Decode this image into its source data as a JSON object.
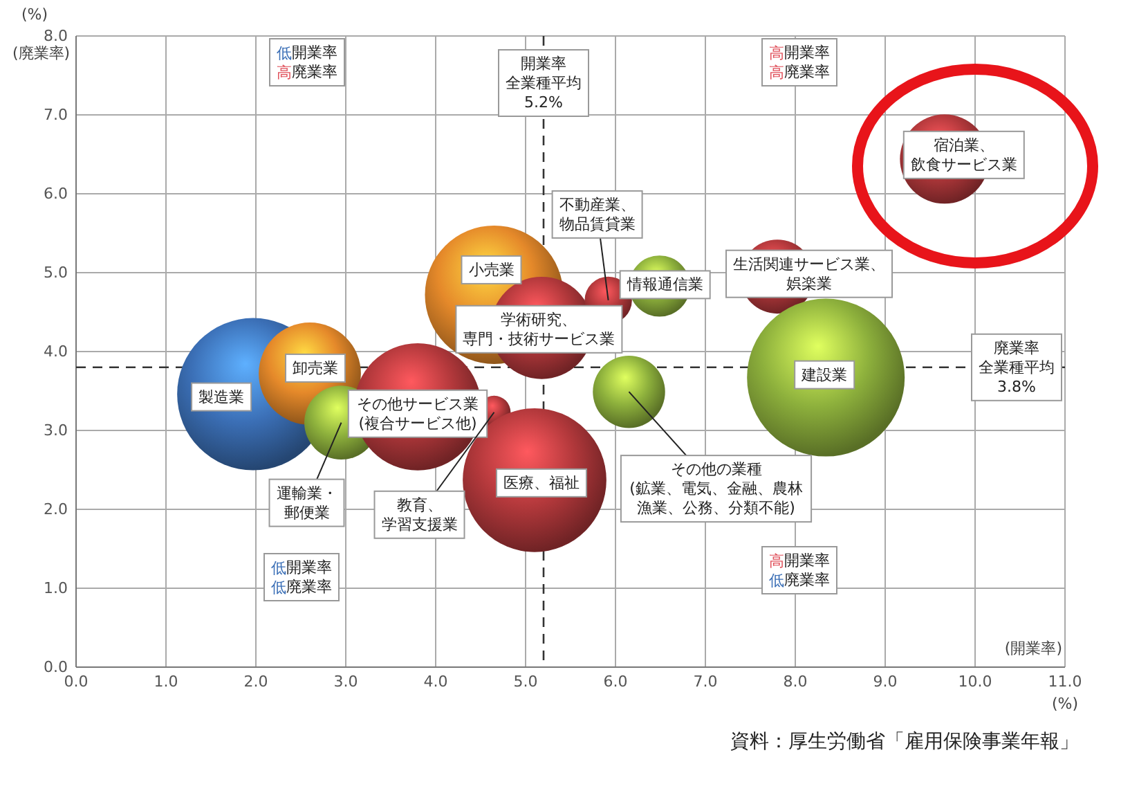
{
  "chart_data": {
    "type": "bubble",
    "xlabel": "(開業率)",
    "ylabel": "(廃業率)",
    "xlim": [
      0,
      11
    ],
    "xticks": [
      {
        "value": 0,
        "label": "0.0"
      },
      {
        "value": 1,
        "label": "1.0"
      },
      {
        "value": 2,
        "label": "2.0"
      },
      {
        "value": 3,
        "label": "3.0"
      },
      {
        "value": 4,
        "label": "4.0"
      },
      {
        "value": 5,
        "label": "5.0"
      },
      {
        "value": 6,
        "label": "6.0"
      },
      {
        "value": 7,
        "label": "7.0"
      },
      {
        "value": 8,
        "label": "8.0"
      },
      {
        "value": 9,
        "label": "9.0"
      },
      {
        "value": 10,
        "label": "10.0"
      },
      {
        "value": 11,
        "label": "11.0"
      }
    ],
    "ylim": [
      0,
      8
    ],
    "yticks": [
      {
        "value": 0,
        "label": "0.0"
      },
      {
        "value": 1,
        "label": "1.0"
      },
      {
        "value": 2,
        "label": "2.0"
      },
      {
        "value": 3,
        "label": "3.0"
      },
      {
        "value": 4,
        "label": "4.0"
      },
      {
        "value": 5,
        "label": "5.0"
      },
      {
        "value": 6,
        "label": "6.0"
      },
      {
        "value": 7,
        "label": "7.0"
      },
      {
        "value": 8,
        "label": "8.0"
      }
    ],
    "grid": true,
    "marker": "circle",
    "series": [
      {
        "x": [
          1.97,
          2.6,
          2.95,
          3.8,
          4.65,
          5.1,
          4.65,
          5.18,
          5.92,
          6.49,
          7.8,
          9.66,
          8.34,
          6.15
        ],
        "values": [
          3.46,
          3.72,
          3.1,
          3.3,
          3.23,
          2.37,
          4.72,
          4.3,
          4.65,
          4.83,
          4.95,
          6.44,
          3.67,
          3.49
        ],
        "sizes": [
          0.93,
          0.42,
          0.22,
          0.65,
          0.044,
          0.83,
          0.77,
          0.42,
          0.09,
          0.15,
          0.22,
          0.32,
          1,
          0.21
        ],
        "colors": [
          "#3b6fb6",
          "#e5892a",
          "#8db03c",
          "#b2383b",
          "#b2383b",
          "#b2383b",
          "#e5892a",
          "#b2383b",
          "#b2383b",
          "#8db03c",
          "#b2383b",
          "#b2383b",
          "#8db03c",
          "#8db03c"
        ]
      }
    ],
    "ref_lines": [
      {
        "axis": "x",
        "value": 5.2,
        "label": "開業率全業種平均5.2%",
        "line_style": "dashed",
        "color": "#333333"
      },
      {
        "axis": "y",
        "value": 3.8,
        "label": "廃業率全業種平均3.8%",
        "line_style": "dashed",
        "color": "#333333"
      }
    ],
    "annotations": [
      "低開業率高廃業率",
      "高開業率高廃業率",
      "低開業率低廃業率",
      "高開業率低廃業率",
      "(%)",
      "(%)",
      "資料：厚生労働省「雇用保険事業年報」",
      {
        "text": "製造業",
        "x": 1.97,
        "y": 3.46
      },
      {
        "text": "卸売業",
        "x": 2.6,
        "y": 3.72
      },
      {
        "text": "運輸業・郵便業",
        "x": 2.95,
        "y": 3.1
      },
      {
        "text": "その他サービス業(複合サービス他)",
        "x": 3.8,
        "y": 3.3
      },
      {
        "text": "教育、学習支援業",
        "x": 4.65,
        "y": 3.23
      },
      {
        "text": "医療、福祉",
        "x": 5.1,
        "y": 2.37
      },
      {
        "text": "小売業",
        "x": 4.65,
        "y": 4.72
      },
      {
        "text": "学術研究、専門・技術サービス業",
        "x": 5.18,
        "y": 4.3
      },
      {
        "text": "不動産業、物品賃貸業",
        "x": 5.92,
        "y": 4.65
      },
      {
        "text": "情報通信業",
        "x": 6.49,
        "y": 4.83
      },
      {
        "text": "生活関連サービス業、娯楽業",
        "x": 7.8,
        "y": 4.95
      },
      {
        "text": "宿泊業、飲食サービス業",
        "x": 9.66,
        "y": 6.44
      },
      {
        "text": "建設業",
        "x": 8.34,
        "y": 3.67
      },
      {
        "text": "その他の業種(鉱業、電気、金融、農林漁業、公務、分類不能)",
        "x": 6.15,
        "y": 3.49
      }
    ]
  }
}
